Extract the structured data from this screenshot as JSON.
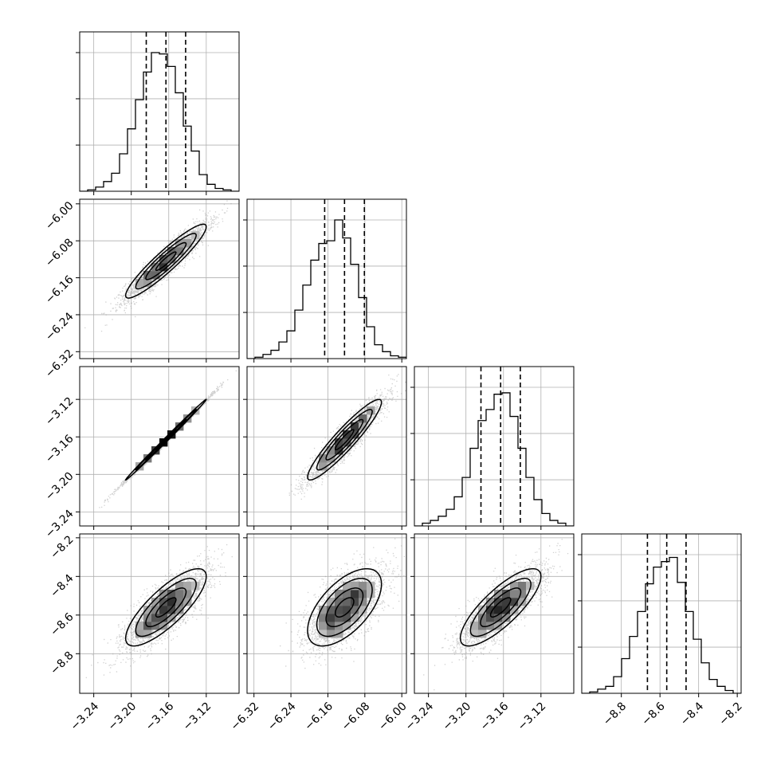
{
  "chart_data": {
    "type": "corner",
    "grid": true,
    "quantiles": [
      0.16,
      0.5,
      0.84
    ],
    "parameters": [
      {
        "range": [
          -3.255,
          -3.085
        ],
        "ticks": [
          -3.24,
          -3.2,
          -3.16,
          -3.12
        ],
        "tick_labels": [
          "−3.24",
          "−3.20",
          "−3.16",
          "−3.12"
        ],
        "mean": -3.163,
        "sigma": 0.0215,
        "quantile_lines": [
          -3.184,
          -3.163,
          -3.142
        ]
      },
      {
        "range": [
          -6.335,
          -5.99
        ],
        "ticks": [
          -6.32,
          -6.24,
          -6.16,
          -6.08,
          -6.0
        ],
        "tick_labels": [
          "−6.32",
          "−6.24",
          "−6.16",
          "−6.08",
          "−6.00"
        ],
        "mean": -6.124,
        "sigma": 0.04,
        "quantile_lines": [
          -6.167,
          -6.124,
          -6.081
        ]
      },
      {
        "range": [
          -3.255,
          -3.085
        ],
        "ticks": [
          -3.24,
          -3.2,
          -3.16,
          -3.12
        ],
        "tick_labels": [
          "−3.24",
          "−3.20",
          "−3.16",
          "−3.12"
        ],
        "mean": -3.163,
        "sigma": 0.0215,
        "quantile_lines": [
          -3.184,
          -3.163,
          -3.142
        ]
      },
      {
        "range": [
          -9.005,
          -8.18
        ],
        "ticks": [
          -8.8,
          -8.6,
          -8.4,
          -8.2
        ],
        "tick_labels": [
          "−8.8",
          "−8.6",
          "−8.4",
          "−8.2"
        ],
        "mean": -8.56,
        "sigma": 0.1,
        "quantile_lines": [
          -8.665,
          -8.565,
          -8.465
        ]
      }
    ],
    "histograms": [
      {
        "param": 0,
        "bin_edges": [
          -3.255,
          -3.2465,
          -3.238,
          -3.2295,
          -3.221,
          -3.2125,
          -3.204,
          -3.1955,
          -3.187,
          -3.1785,
          -3.17,
          -3.1615,
          -3.153,
          -3.1445,
          -3.136,
          -3.1275,
          -3.119,
          -3.1105,
          -3.102,
          -3.0935,
          -3.085
        ],
        "counts": [
          0.0,
          0.01,
          0.03,
          0.07,
          0.13,
          0.27,
          0.45,
          0.66,
          0.86,
          1.0,
          0.99,
          0.9,
          0.71,
          0.47,
          0.29,
          0.12,
          0.05,
          0.02,
          0.01,
          0.0
        ]
      },
      {
        "param": 1,
        "bin_edges": [
          -6.335,
          -6.31775,
          -6.3005,
          -6.28325,
          -6.266,
          -6.24875,
          -6.2315,
          -6.21425,
          -6.197,
          -6.17975,
          -6.1625,
          -6.14525,
          -6.128,
          -6.11075,
          -6.0935,
          -6.07625,
          -6.059,
          -6.04175,
          -6.0245,
          -6.00725,
          -5.99
        ],
        "counts": [
          0.0,
          0.01,
          0.03,
          0.06,
          0.12,
          0.2,
          0.35,
          0.53,
          0.71,
          0.83,
          0.85,
          1.0,
          0.87,
          0.68,
          0.44,
          0.23,
          0.1,
          0.05,
          0.02,
          0.01
        ]
      },
      {
        "param": 2,
        "bin_edges": [
          -3.255,
          -3.2465,
          -3.238,
          -3.2295,
          -3.221,
          -3.2125,
          -3.204,
          -3.1955,
          -3.187,
          -3.1785,
          -3.17,
          -3.1615,
          -3.153,
          -3.1445,
          -3.136,
          -3.1275,
          -3.119,
          -3.1105,
          -3.102,
          -3.0935,
          -3.085
        ],
        "counts": [
          0.0,
          0.02,
          0.04,
          0.07,
          0.12,
          0.21,
          0.35,
          0.56,
          0.76,
          0.84,
          0.95,
          0.96,
          0.79,
          0.56,
          0.35,
          0.19,
          0.09,
          0.04,
          0.02,
          0.0
        ]
      },
      {
        "param": 3,
        "bin_edges": [
          -9.005,
          -8.96375,
          -8.9225,
          -8.88125,
          -8.84,
          -8.79875,
          -8.7575,
          -8.71625,
          -8.675,
          -8.63375,
          -8.5925,
          -8.55125,
          -8.51,
          -8.46875,
          -8.4275,
          -8.38625,
          -8.345,
          -8.30375,
          -8.2625,
          -8.22125,
          -8.18
        ],
        "counts": [
          0.0,
          0.01,
          0.03,
          0.05,
          0.12,
          0.25,
          0.41,
          0.59,
          0.79,
          0.91,
          0.95,
          0.98,
          0.8,
          0.59,
          0.39,
          0.22,
          0.1,
          0.05,
          0.02,
          0.0
        ]
      }
    ],
    "pairs": [
      {
        "x_param": 0,
        "y_param": 1,
        "correlation": 0.93
      },
      {
        "x_param": 0,
        "y_param": 2,
        "correlation": 0.998
      },
      {
        "x_param": 1,
        "y_param": 2,
        "correlation": 0.93
      },
      {
        "x_param": 0,
        "y_param": 3,
        "correlation": 0.8
      },
      {
        "x_param": 1,
        "y_param": 3,
        "correlation": 0.6
      },
      {
        "x_param": 2,
        "y_param": 3,
        "correlation": 0.8
      }
    ],
    "contour_levels_sigma": [
      0.5,
      1.0,
      1.5,
      2.0
    ]
  }
}
